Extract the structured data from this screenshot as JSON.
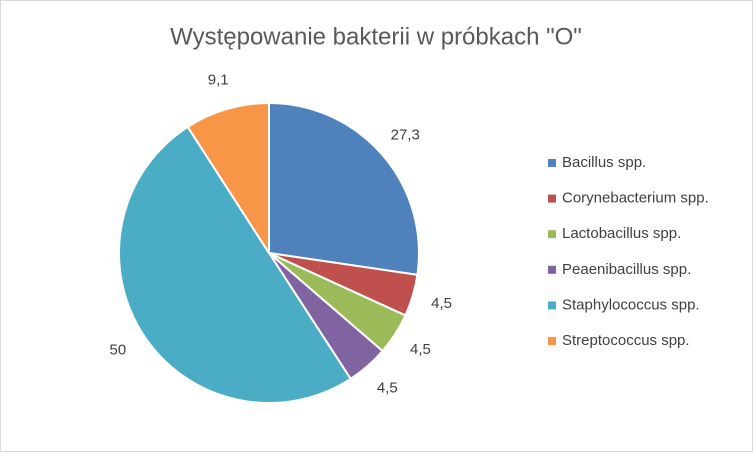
{
  "chart_data": {
    "type": "pie",
    "title": "Występowanie bakterii w próbkach \"O\"",
    "categories": [
      "Bacillus spp.",
      "Corynebacterium spp.",
      "Lactobacillus spp.",
      "Peaenibacillus spp.",
      "Staphylococcus spp.",
      "Streptococcus spp."
    ],
    "values": [
      27.3,
      4.5,
      4.5,
      4.5,
      50,
      9.1
    ],
    "value_labels": [
      "27,3",
      "4,5",
      "4,5",
      "4,5",
      "50",
      "9,1"
    ],
    "colors": [
      "#4f81bd",
      "#c0504d",
      "#9bbb59",
      "#8064a2",
      "#4bacc6",
      "#f79646"
    ],
    "legend": "right"
  }
}
